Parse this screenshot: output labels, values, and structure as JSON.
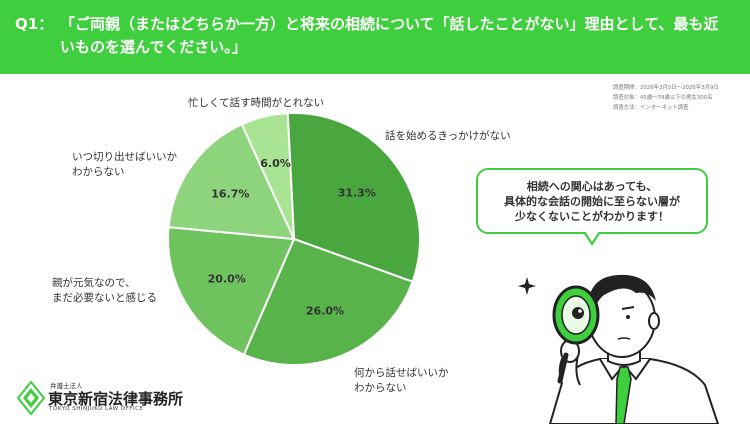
{
  "header": {
    "question_number": "Q1：",
    "question_text": "「ご両親（またはどちらか一方）と将来の相続について「話したことがない」理由として、最も近いものを選んでください。」"
  },
  "survey": {
    "period": "調査期間：2026年3月5日～2026年3月9日",
    "target": "調査対象：45歳～79歳以下の男女300名",
    "method": "調査方法：インターネット調査"
  },
  "chart_data": {
    "type": "pie",
    "title": "",
    "unit": "%",
    "slices": [
      {
        "label": "話を始めるきっかけがない",
        "value": 31.3,
        "value_label": "31.3%",
        "color": "#4aa63f"
      },
      {
        "label": "何から話せばいいかわからない",
        "value": 26.0,
        "value_label": "26.0%",
        "color": "#57b34a"
      },
      {
        "label": "親が元気なので、まだ必要ないと感じる",
        "value": 20.0,
        "value_label": "20.0%",
        "color": "#6fc35e"
      },
      {
        "label": "いつ切り出せばいいかわからない",
        "value": 16.7,
        "value_label": "16.7%",
        "color": "#8ed47d"
      },
      {
        "label": "忙しくて話す時間がとれない",
        "value": 6.0,
        "value_label": "6.0%",
        "color": "#a9e494"
      }
    ]
  },
  "labels": {
    "kikkake": "話を始めるきっかけがない",
    "nani_1": "何から話せばいいか",
    "nani_2": "わからない",
    "oya_1": "親が元気なので、",
    "oya_2": "まだ必要ないと感じる",
    "itsu_1": "いつ切り出せばいいか",
    "itsu_2": "わからない",
    "isogashi": "忙しくて話す時間がとれない"
  },
  "bubble": {
    "line1": "相続への関心はあっても、",
    "line2": "具体的な会話の開始に至らない層が",
    "line3": "少なくないことがわかります！"
  },
  "logo": {
    "top": "弁護士法人",
    "name": "東京新宿法律事務所",
    "en": "TOKYO SHINJUKU LAW OFFICE"
  },
  "colors": {
    "header_bg": "#3fce3d",
    "accent": "#3fce3d"
  }
}
